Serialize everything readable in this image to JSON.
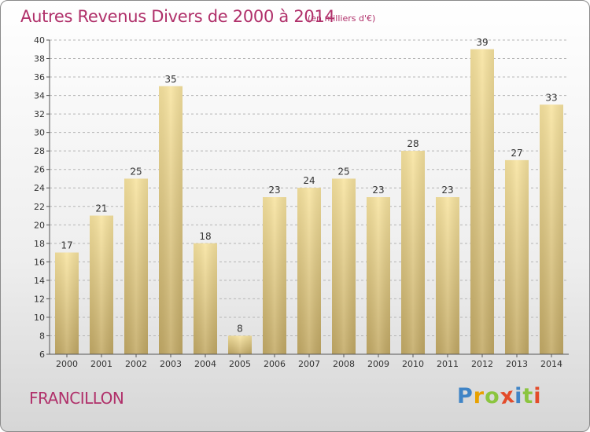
{
  "header": {
    "title": "Autres Revenus Divers de 2000 à 2014",
    "unit": "(en milliers d'€)"
  },
  "footer": {
    "location": "FRANCILLON"
  },
  "logo": {
    "letters": [
      "P",
      "r",
      "o",
      "x",
      "i",
      "t",
      "i"
    ],
    "colors": [
      "#3f84c6",
      "#e8a100",
      "#8bc53f",
      "#e34b2a",
      "#3f84c6",
      "#8bc53f",
      "#e34b2a"
    ]
  },
  "chart_data": {
    "type": "bar",
    "title": "Autres Revenus Divers de 2000 à 2014",
    "xlabel": "",
    "ylabel": "",
    "categories": [
      "2000",
      "2001",
      "2002",
      "2003",
      "2004",
      "2005",
      "2006",
      "2007",
      "2008",
      "2009",
      "2010",
      "2011",
      "2012",
      "2013",
      "2014"
    ],
    "values": [
      17,
      21,
      25,
      35,
      18,
      8,
      23,
      24,
      25,
      23,
      28,
      23,
      39,
      27,
      33
    ],
    "ylim": [
      6,
      40
    ],
    "yticks": [
      6,
      8,
      10,
      12,
      14,
      16,
      18,
      20,
      22,
      24,
      26,
      28,
      30,
      32,
      34,
      36,
      38,
      40
    ],
    "grid": "horizontal dashed",
    "bar_color": "#e6cf8a"
  }
}
